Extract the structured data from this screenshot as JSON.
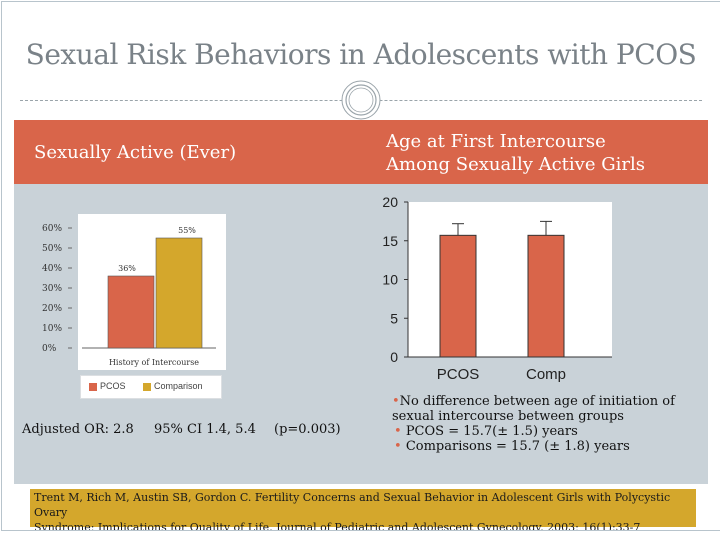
{
  "slide": {
    "title": "Sexual Risk Behaviors in Adolescents with PCOS",
    "band_left": "Sexually Active (Ever)",
    "band_right_line1": "Age at First Intercourse",
    "band_right_line2": "Among Sexually Active Girls"
  },
  "stats": {
    "adjusted_or": "Adjusted OR: 2.8",
    "ci": "95% CI 1.4, 5.4",
    "p_value": "(p=0.003)"
  },
  "notes": {
    "lead": "No difference between age of initiation of sexual intercourse between groups",
    "items": [
      "PCOS = 15.7(± 1.5) years",
      "Comparisons = 15.7 (± 1.8) years"
    ]
  },
  "citation": {
    "line1": "Trent M, Rich M, Austin SB, Gordon C. Fertility Concerns and Sexual Behavior in Adolescent Girls with Polycystic Ovary",
    "line2": "Syndrome: Implications for Quality of Life, Journal of Pediatric and Adolescent Gynecology, 2003; 16(1):33-7"
  },
  "colors": {
    "band": "#d9654a",
    "panel": "#c9d2d8",
    "pcos": "#d9654a",
    "comparison": "#d4a72c",
    "citation_bg": "#d4a72c"
  },
  "chart_data": [
    {
      "type": "bar",
      "title": "",
      "xlabel": "History of Intercourse",
      "ylabel": "",
      "ylim": [
        0,
        60
      ],
      "yticks": [
        "0%",
        "10%",
        "20%",
        "30%",
        "40%",
        "50%",
        "60%"
      ],
      "categories": [
        "PCOS",
        "Comparison"
      ],
      "values": [
        36,
        55
      ],
      "data_labels": [
        "36%",
        "55%"
      ],
      "legend": [
        "PCOS",
        "Comparison"
      ],
      "legend_placement": "bottom"
    },
    {
      "type": "bar",
      "title": "",
      "xlabel": "",
      "ylabel": "",
      "ylim": [
        0,
        20
      ],
      "yticks": [
        "0",
        "5",
        "10",
        "15",
        "20"
      ],
      "categories": [
        "PCOS",
        "Comp"
      ],
      "values": [
        15.7,
        15.7
      ],
      "error": [
        1.5,
        1.8
      ]
    }
  ]
}
